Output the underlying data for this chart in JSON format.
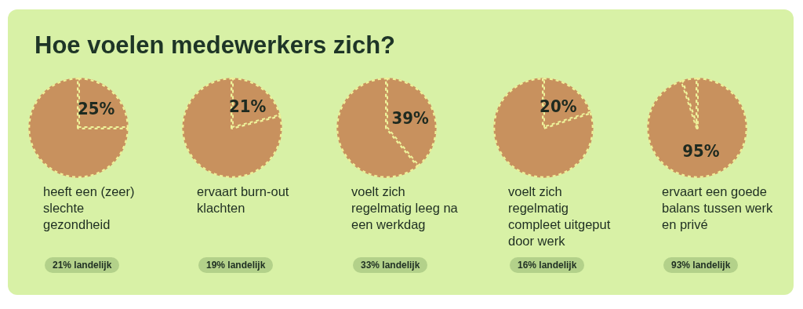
{
  "chart_data": [
    {
      "type": "pie",
      "title": "Hoe voelen medewerkers zich?",
      "categories": [
        null,
        null
      ],
      "values": [
        25,
        75
      ],
      "colors": [
        "#c8915e",
        "#c8915e"
      ],
      "value_labels": [
        "25%",
        null
      ],
      "subtitle": "heeft een (zeer) slechte gezondheid",
      "annotations": [
        "21% landelijk"
      ]
    },
    {
      "type": "pie",
      "categories": [
        null,
        null
      ],
      "values": [
        21,
        79
      ],
      "colors": [
        "#c8915e",
        "#c8915e"
      ],
      "value_labels": [
        "21%",
        null
      ],
      "subtitle": "ervaart burn-out klachten",
      "annotations": [
        "19% landelijk"
      ]
    },
    {
      "type": "pie",
      "categories": [
        null,
        null
      ],
      "values": [
        39,
        61
      ],
      "colors": [
        "#c8915e",
        "#c8915e"
      ],
      "value_labels": [
        "39%",
        null
      ],
      "subtitle": "voelt zich regelmatig leeg na een werkdag",
      "annotations": [
        "33% landelijk"
      ]
    },
    {
      "type": "pie",
      "categories": [
        null,
        null
      ],
      "values": [
        20,
        80
      ],
      "colors": [
        "#c8915e",
        "#c8915e"
      ],
      "value_labels": [
        "20%",
        null
      ],
      "subtitle": "voelt zich regelmatig compleet uitgeput door werk",
      "annotations": [
        "16% landelijk"
      ]
    },
    {
      "type": "pie",
      "categories": [
        null,
        null
      ],
      "values": [
        95,
        5
      ],
      "colors": [
        "#c8915e",
        "#c8915e"
      ],
      "value_labels": [
        "95%",
        null
      ],
      "subtitle": "ervaart een goede balans tussen werk en privé",
      "annotations": [
        "93% landelijk"
      ]
    }
  ]
}
